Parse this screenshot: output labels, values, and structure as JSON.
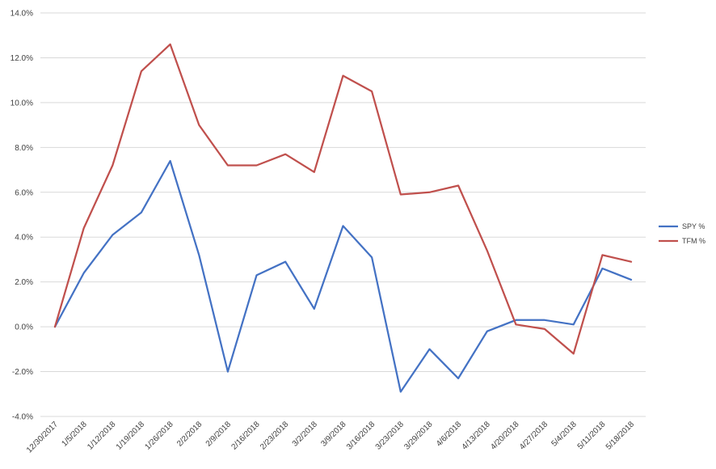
{
  "chart_data": {
    "type": "line",
    "title": "",
    "xlabel": "",
    "ylabel": "",
    "categories": [
      "12/30/2017",
      "1/5/2018",
      "1/12/2018",
      "1/19/2018",
      "1/26/2018",
      "2/2/2018",
      "2/9/2018",
      "2/16/2018",
      "2/23/2018",
      "3/2/2018",
      "3/9/2018",
      "3/16/2018",
      "3/23/2018",
      "3/29/2018",
      "4/6/2018",
      "4/13/2018",
      "4/20/2018",
      "4/27/2018",
      "5/4/2018",
      "5/11/2018",
      "5/18/2018"
    ],
    "ylim": [
      -4.0,
      14.0
    ],
    "y_ticks": [
      "14.0%",
      "12.0%",
      "10.0%",
      "8.0%",
      "6.0%",
      "4.0%",
      "2.0%",
      "0.0%",
      "-2.0%",
      "-4.0%"
    ],
    "y_tick_values": [
      14,
      12,
      10,
      8,
      6,
      4,
      2,
      0,
      -2,
      -4
    ],
    "grid": true,
    "legend_position": "right",
    "series": [
      {
        "name": "SPY %",
        "color": "#4472c4",
        "values": [
          0.0,
          2.4,
          4.1,
          5.1,
          7.4,
          3.2,
          -2.0,
          2.3,
          2.9,
          0.8,
          4.5,
          3.1,
          -2.9,
          -1.0,
          -2.3,
          -0.2,
          0.3,
          0.3,
          0.1,
          2.6,
          2.1
        ]
      },
      {
        "name": "TFM %",
        "color": "#c0504d",
        "values": [
          0.0,
          4.4,
          7.2,
          11.4,
          12.6,
          9.0,
          7.2,
          7.2,
          7.7,
          6.9,
          11.2,
          10.5,
          5.9,
          6.0,
          6.3,
          3.4,
          0.1,
          -0.1,
          -1.2,
          3.2,
          2.9
        ]
      }
    ]
  }
}
